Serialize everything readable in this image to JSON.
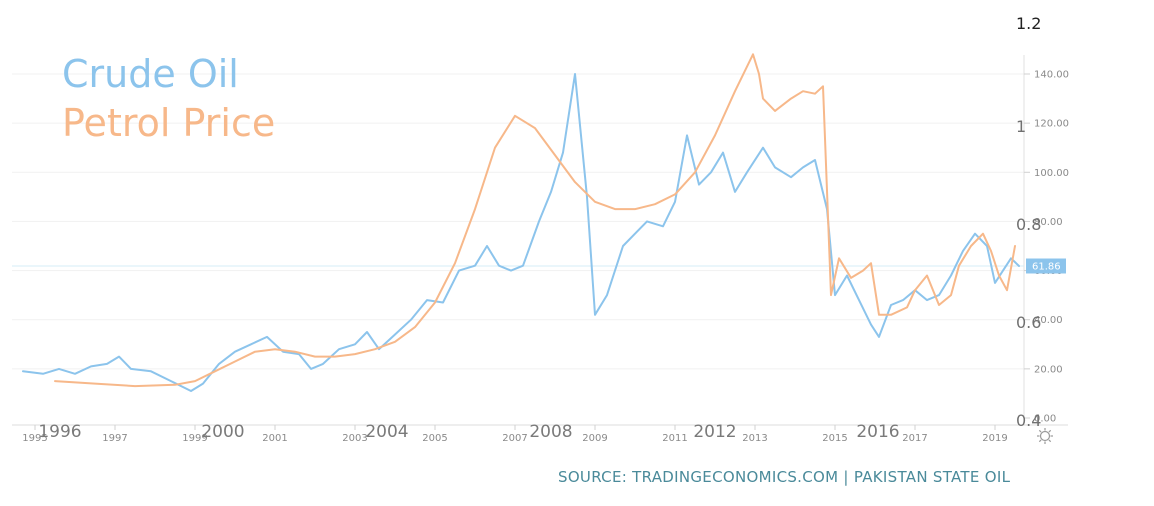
{
  "chart_data": {
    "type": "line",
    "legend": [
      {
        "label": "Crude Oil",
        "color": "#8cc4ec"
      },
      {
        "label": "Petrol Price",
        "color": "#f7b88a"
      }
    ],
    "legend_placement": "top-left",
    "source": "SOURCE: TRADINGECONOMICS.COM | PAKISTAN STATE OIL",
    "grid": true,
    "right_axis": {
      "ticks": [
        "140.00",
        "120.00",
        "100.00",
        "80.00",
        "60.00",
        "40.00",
        "20.00",
        "0.00"
      ],
      "ylim": [
        0,
        150
      ]
    },
    "secondary_axis_labels": [
      "1.2",
      "1",
      "0.8",
      "0.6",
      "0.4"
    ],
    "x_ticks": [
      "1995",
      "1997",
      "1999",
      "2001",
      "2003",
      "2005",
      "2007",
      "2009",
      "2011",
      "2013",
      "2015",
      "2017",
      "2019"
    ],
    "x_overlay_labels": [
      "1996",
      "2000",
      "2004",
      "2008",
      "2012",
      "2016"
    ],
    "last_value_label": "61.86",
    "crude_color": "#8cc4ec",
    "petrol_color": "#f7b88a",
    "series": [
      {
        "name": "Crude Oil",
        "color": "#8cc4ec",
        "points": [
          [
            1994.7,
            19
          ],
          [
            1995.2,
            18
          ],
          [
            1995.6,
            20
          ],
          [
            1996.0,
            18
          ],
          [
            1996.4,
            21
          ],
          [
            1996.8,
            22
          ],
          [
            1997.1,
            25
          ],
          [
            1997.4,
            20
          ],
          [
            1997.9,
            19
          ],
          [
            1998.4,
            15
          ],
          [
            1998.9,
            11
          ],
          [
            1999.2,
            14
          ],
          [
            1999.6,
            22
          ],
          [
            2000.0,
            27
          ],
          [
            2000.4,
            30
          ],
          [
            2000.8,
            33
          ],
          [
            2001.2,
            27
          ],
          [
            2001.6,
            26
          ],
          [
            2001.9,
            20
          ],
          [
            2002.2,
            22
          ],
          [
            2002.6,
            28
          ],
          [
            2003.0,
            30
          ],
          [
            2003.3,
            35
          ],
          [
            2003.6,
            28
          ],
          [
            2004.0,
            34
          ],
          [
            2004.4,
            40
          ],
          [
            2004.8,
            48
          ],
          [
            2005.2,
            47
          ],
          [
            2005.6,
            60
          ],
          [
            2006.0,
            62
          ],
          [
            2006.3,
            70
          ],
          [
            2006.6,
            62
          ],
          [
            2006.9,
            60
          ],
          [
            2007.2,
            62
          ],
          [
            2007.6,
            80
          ],
          [
            2007.9,
            92
          ],
          [
            2008.2,
            108
          ],
          [
            2008.5,
            140
          ],
          [
            2008.8,
            90
          ],
          [
            2009.0,
            42
          ],
          [
            2009.3,
            50
          ],
          [
            2009.7,
            70
          ],
          [
            2010.0,
            75
          ],
          [
            2010.3,
            80
          ],
          [
            2010.7,
            78
          ],
          [
            2011.0,
            88
          ],
          [
            2011.3,
            115
          ],
          [
            2011.6,
            95
          ],
          [
            2011.9,
            100
          ],
          [
            2012.2,
            108
          ],
          [
            2012.5,
            92
          ],
          [
            2012.8,
            100
          ],
          [
            2013.2,
            110
          ],
          [
            2013.5,
            102
          ],
          [
            2013.9,
            98
          ],
          [
            2014.2,
            102
          ],
          [
            2014.5,
            105
          ],
          [
            2014.8,
            85
          ],
          [
            2015.0,
            50
          ],
          [
            2015.3,
            58
          ],
          [
            2015.6,
            48
          ],
          [
            2015.9,
            38
          ],
          [
            2016.1,
            33
          ],
          [
            2016.4,
            46
          ],
          [
            2016.7,
            48
          ],
          [
            2017.0,
            52
          ],
          [
            2017.3,
            48
          ],
          [
            2017.6,
            50
          ],
          [
            2017.9,
            58
          ],
          [
            2018.2,
            68
          ],
          [
            2018.5,
            75
          ],
          [
            2018.8,
            70
          ],
          [
            2019.0,
            55
          ],
          [
            2019.2,
            60
          ],
          [
            2019.4,
            65
          ],
          [
            2019.6,
            61.86
          ]
        ]
      },
      {
        "name": "Petrol Price",
        "color": "#f7b88a",
        "points": [
          [
            1995.5,
            15
          ],
          [
            1996.5,
            14
          ],
          [
            1997.5,
            13
          ],
          [
            1998.5,
            13.5
          ],
          [
            1999.0,
            15
          ],
          [
            1999.5,
            19
          ],
          [
            2000.0,
            23
          ],
          [
            2000.5,
            27
          ],
          [
            2001.0,
            28
          ],
          [
            2001.5,
            27
          ],
          [
            2002.0,
            25
          ],
          [
            2002.5,
            25
          ],
          [
            2003.0,
            26
          ],
          [
            2003.5,
            28
          ],
          [
            2004.0,
            31
          ],
          [
            2004.5,
            37
          ],
          [
            2005.0,
            47
          ],
          [
            2005.5,
            63
          ],
          [
            2006.0,
            85
          ],
          [
            2006.5,
            110
          ],
          [
            2007.0,
            123
          ],
          [
            2007.5,
            118
          ],
          [
            2008.0,
            107
          ],
          [
            2008.5,
            96
          ],
          [
            2009.0,
            88
          ],
          [
            2009.5,
            85
          ],
          [
            2010.0,
            85
          ],
          [
            2010.5,
            87
          ],
          [
            2011.0,
            91
          ],
          [
            2011.5,
            100
          ],
          [
            2012.0,
            115
          ],
          [
            2012.5,
            133
          ],
          [
            2012.95,
            148
          ],
          [
            2013.1,
            140
          ],
          [
            2013.2,
            130
          ],
          [
            2013.5,
            125
          ],
          [
            2013.9,
            130
          ],
          [
            2014.2,
            133
          ],
          [
            2014.5,
            132
          ],
          [
            2014.7,
            135
          ],
          [
            2014.9,
            50
          ],
          [
            2015.1,
            65
          ],
          [
            2015.4,
            57
          ],
          [
            2015.7,
            60
          ],
          [
            2015.9,
            63
          ],
          [
            2016.1,
            42
          ],
          [
            2016.4,
            42
          ],
          [
            2016.8,
            45
          ],
          [
            2017.0,
            52
          ],
          [
            2017.3,
            58
          ],
          [
            2017.6,
            46
          ],
          [
            2017.9,
            50
          ],
          [
            2018.1,
            62
          ],
          [
            2018.4,
            70
          ],
          [
            2018.7,
            75
          ],
          [
            2018.9,
            68
          ],
          [
            2019.1,
            58
          ],
          [
            2019.3,
            52
          ],
          [
            2019.5,
            70
          ]
        ]
      }
    ]
  }
}
